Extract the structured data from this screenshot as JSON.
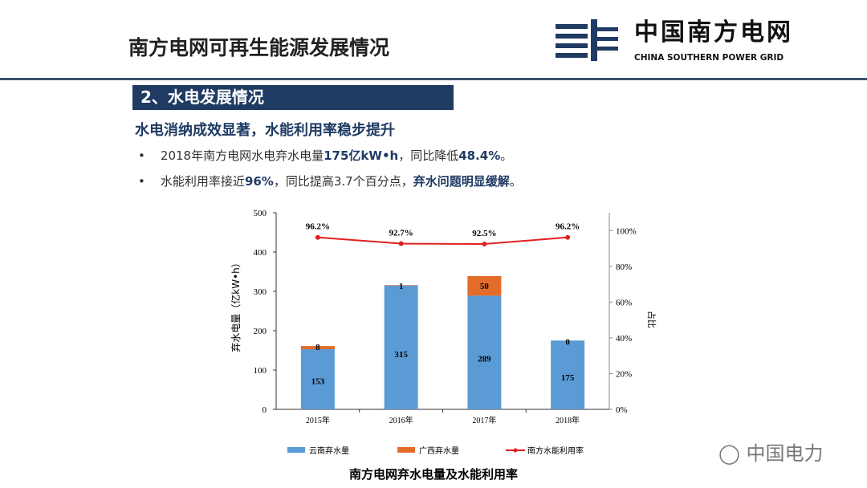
{
  "header": {
    "title": "南方电网可再生能源发展情况",
    "logo_cn": "中国南方电网",
    "logo_en": "CHINA SOUTHERN POWER GRID"
  },
  "section": {
    "title": "2、水电发展情况",
    "subtitle": "水电消纳成效显著，水能利用率稳步提升",
    "bullets": [
      {
        "pre": "2018年南方电网水电弃水电量",
        "bold": "175亿kW•h",
        "mid": "，同比降低",
        "bold2": "48.4%",
        "post": "。"
      },
      {
        "pre": "水能利用率接近",
        "bold": "96%",
        "mid": "，同比提高3.7个百分点，",
        "bold2": "弃水问题明显缓解",
        "post": "。"
      }
    ]
  },
  "watermark": "中国电力",
  "colors": {
    "yunnan": "#5b9bd5",
    "guangxi": "#e46c2a",
    "line": "#e02020",
    "navy": "#1f3b63"
  },
  "chart_data": {
    "type": "bar",
    "title": "南方电网弃水电量及水能利用率",
    "categories": [
      "2015年",
      "2016年",
      "2017年",
      "2018年"
    ],
    "ylabel": "弃水电量（亿kW•h）",
    "y2label": "占比",
    "ylim": [
      0,
      500
    ],
    "yticks": [
      0,
      100,
      200,
      300,
      400,
      500
    ],
    "y2lim": [
      0,
      110
    ],
    "y2ticks": [
      "0%",
      "20%",
      "40%",
      "60%",
      "80%",
      "100%"
    ],
    "series": [
      {
        "name": "云南弃水量",
        "type": "bar",
        "values": [
          153,
          315,
          289,
          175
        ],
        "labels": [
          "153",
          "315",
          "289",
          "175"
        ]
      },
      {
        "name": "广西弃水量",
        "type": "bar",
        "values": [
          8,
          1,
          50,
          0
        ],
        "labels": [
          "8",
          "1",
          "50",
          "0"
        ]
      },
      {
        "name": "南方水能利用率",
        "type": "line",
        "axis": "right",
        "values": [
          96.2,
          92.7,
          92.5,
          96.2
        ],
        "labels": [
          "96.2%",
          "92.7%",
          "92.5%",
          "96.2%"
        ]
      }
    ],
    "legend": "bottom"
  }
}
